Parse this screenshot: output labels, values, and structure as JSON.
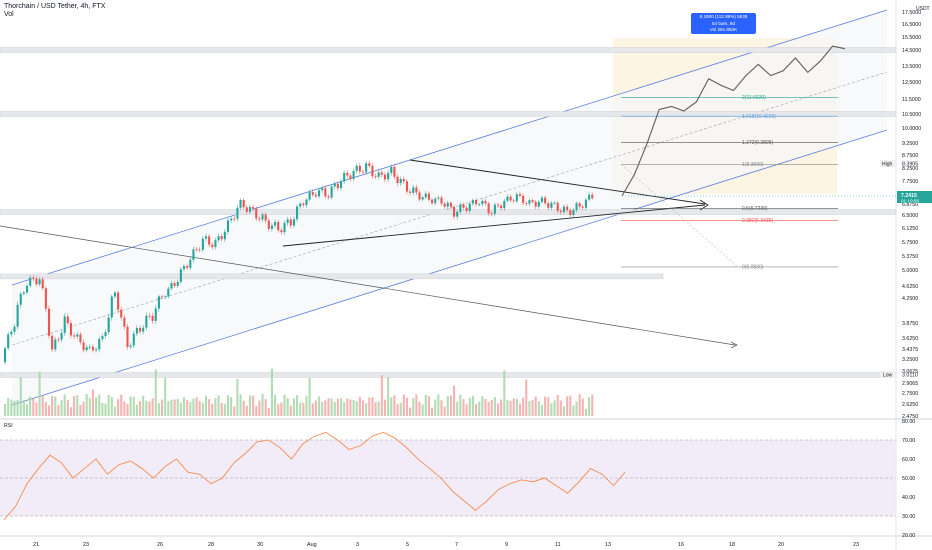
{
  "header": {
    "title": "Thorchain / USD Tether, 4h, FTX",
    "vol_label": "Vol"
  },
  "currency_label": "USDT",
  "price_scale": {
    "labels": [
      {
        "v": 17.5,
        "t": "17.5000"
      },
      {
        "v": 16.5,
        "t": "16.5000"
      },
      {
        "v": 15.5,
        "t": "15.5000"
      },
      {
        "v": 14.5,
        "t": "14.5000"
      },
      {
        "v": 13.5,
        "t": "13.5000"
      },
      {
        "v": 12.5,
        "t": "12.5000"
      },
      {
        "v": 11.5,
        "t": "11.5000"
      },
      {
        "v": 10.5,
        "t": "10.5000"
      },
      {
        "v": 10.0,
        "t": "10.0000"
      },
      {
        "v": 9.25,
        "t": "9.2500"
      },
      {
        "v": 8.75,
        "t": "8.7500"
      },
      {
        "v": 8.25,
        "t": "8.2500"
      },
      {
        "v": 7.75,
        "t": "7.7500"
      },
      {
        "v": 6.875,
        "t": "6.8750"
      },
      {
        "v": 6.5,
        "t": "6.5000"
      },
      {
        "v": 6.125,
        "t": "6.1250"
      },
      {
        "v": 5.75,
        "t": "5.7500"
      },
      {
        "v": 5.375,
        "t": "5.3750"
      },
      {
        "v": 5.0,
        "t": "5.0000"
      },
      {
        "v": 4.625,
        "t": "4.6250"
      },
      {
        "v": 4.25,
        "t": "4.2500"
      },
      {
        "v": 3.875,
        "t": "3.8750"
      },
      {
        "v": 3.625,
        "t": "3.6250"
      },
      {
        "v": 3.4375,
        "t": "3.4375"
      },
      {
        "v": 3.25,
        "t": "3.2500"
      },
      {
        "v": 3.0625,
        "t": "3.0625"
      },
      {
        "v": 2.9065,
        "t": "2.9065"
      },
      {
        "v": 2.75,
        "t": "2.7500"
      },
      {
        "v": 2.625,
        "t": "2.6250"
      },
      {
        "v": 2.475,
        "t": "2.4750"
      }
    ],
    "current_price": "7.2415",
    "countdown": "01:10:58",
    "high_label": "High",
    "high_value": "8.3905",
    "low_label": "Low",
    "low_value": "3.0110"
  },
  "rsi": {
    "label": "RSI",
    "scale": [
      "80.00",
      "70.00",
      "60.00",
      "50.00",
      "40.00",
      "30.00",
      "20.00"
    ],
    "band_upper": 70,
    "band_lower": 30,
    "midline": 50
  },
  "time_axis": [
    {
      "x": 36,
      "t": "21"
    },
    {
      "x": 86,
      "t": "23"
    },
    {
      "x": 160,
      "t": "26"
    },
    {
      "x": 211,
      "t": "28"
    },
    {
      "x": 260,
      "t": "30"
    },
    {
      "x": 310,
      "t": "Aug"
    },
    {
      "x": 359,
      "t": "3"
    },
    {
      "x": 409,
      "t": "5"
    },
    {
      "x": 458,
      "t": "7"
    },
    {
      "x": 508,
      "t": "9"
    },
    {
      "x": 558,
      "t": "11"
    },
    {
      "x": 608,
      "t": "13"
    },
    {
      "x": 681,
      "t": "16"
    },
    {
      "x": 732,
      "t": "18"
    },
    {
      "x": 781,
      "t": "20"
    },
    {
      "x": 856,
      "t": "23"
    }
  ],
  "projection_tooltip": {
    "line1": "8.1900 (112.99%) 5539",
    "line2": "54 bars, 9d",
    "line3": "Vol 291.883K"
  },
  "fib_levels": [
    {
      "t": "2(11.6020)",
      "color": "#26a69a"
    },
    {
      "t": "1.618(10.4220)",
      "color": "#5b9bd5"
    },
    {
      "t": "1.272(9.2805)",
      "color": "#555555"
    },
    {
      "t": "1(8.3830)",
      "color": "#888888"
    },
    {
      "t": "0.5(6.7230)",
      "color": "#555555"
    },
    {
      "t": "0.382(6.3435)",
      "color": "#ef5350"
    },
    {
      "t": "0(5.0830)",
      "color": "#888888"
    }
  ],
  "colors": {
    "up": "#26a69a",
    "down": "#ef5350",
    "channel": "#5b7ed9",
    "rsi_line": "#f57f3b",
    "rsi_band": "#ede7f6",
    "price_badge": "#26a69a",
    "tooltip": "#2962ff"
  },
  "chart_data": {
    "type": "candlestick",
    "symbol": "Thorchain / USD Tether",
    "timeframe": "4h",
    "exchange": "FTX",
    "x_ticks": [
      "21",
      "23",
      "26",
      "28",
      "30",
      "Aug",
      "3",
      "5",
      "7",
      "9",
      "11",
      "13",
      "16",
      "18",
      "20",
      "23"
    ],
    "price_range": [
      2.475,
      17.5
    ],
    "close_path": [
      3.3,
      3.9,
      4.7,
      4.8,
      3.4,
      3.9,
      3.6,
      3.4,
      3.6,
      4.4,
      3.5,
      3.8,
      4.0,
      4.4,
      4.8,
      5.3,
      5.8,
      5.7,
      6.2,
      6.9,
      6.6,
      6.3,
      6.1,
      6.3,
      7.0,
      7.4,
      7.3,
      7.8,
      8.1,
      8.3,
      7.9,
      8.1,
      7.6,
      7.3,
      7.1,
      7.0,
      6.6,
      6.8,
      7.0,
      6.6,
      7.0,
      7.2,
      6.9,
      7.0,
      6.8,
      6.6,
      6.8,
      7.24
    ],
    "current_price": 7.2415,
    "high": 8.3905,
    "low": 3.011,
    "projection_path": [
      7.24,
      8.0,
      9.2,
      10.8,
      11.0,
      10.7,
      11.3,
      12.7,
      12.3,
      12.0,
      12.9,
      13.6,
      12.9,
      13.2,
      14.0,
      13.1,
      13.8,
      14.8,
      14.6
    ],
    "rsi_values": [
      28,
      35,
      47,
      55,
      62,
      58,
      50,
      55,
      60,
      52,
      57,
      59,
      55,
      50,
      56,
      60,
      53,
      52,
      47,
      50,
      58,
      63,
      69,
      70,
      66,
      60,
      68,
      72,
      74,
      70,
      65,
      67,
      72,
      74,
      71,
      66,
      60,
      55,
      50,
      43,
      38,
      33,
      38,
      44,
      47,
      49,
      48,
      50,
      46,
      42,
      48,
      55,
      52,
      46,
      53
    ],
    "rsi_range": [
      20,
      80
    ],
    "fib_levels": [
      {
        "ratio": 2,
        "price": 11.602
      },
      {
        "ratio": 1.618,
        "price": 10.422
      },
      {
        "ratio": 1.272,
        "price": 9.2805
      },
      {
        "ratio": 1,
        "price": 8.383
      },
      {
        "ratio": 0.5,
        "price": 6.723
      },
      {
        "ratio": 0.382,
        "price": 6.3435
      },
      {
        "ratio": 0,
        "price": 5.083
      }
    ],
    "horizontal_zones": [
      14.5,
      10.5,
      6.6,
      4.85,
      3.011
    ],
    "projection": {
      "change": 8.19,
      "percent": 112.99,
      "ticks": 5539,
      "bars": 54,
      "duration": "9d",
      "volume": "291.883K"
    }
  }
}
